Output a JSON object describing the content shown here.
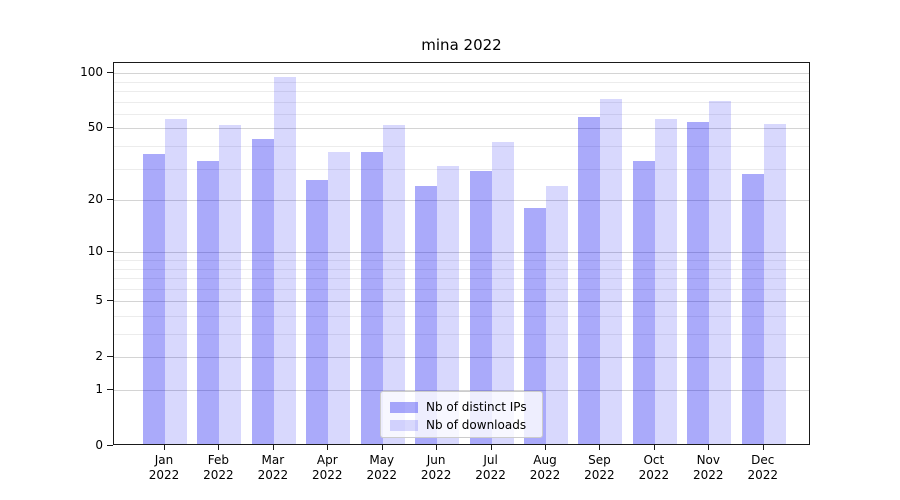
{
  "title": "mina 2022",
  "legend": {
    "items": [
      {
        "label": "Nb of distinct IPs",
        "color_key": "distinct_ips"
      },
      {
        "label": "Nb of downloads",
        "color_key": "downloads"
      }
    ],
    "position": "lower center"
  },
  "colors": {
    "distinct_ips": "rgba(5,5,240,0.34)",
    "downloads": "rgba(5,5,240,0.155)",
    "distinct_ips_hex": "#aaaafa",
    "downloads_hex": "#d8d8fc",
    "grid_major": "#d4d4d4",
    "grid_minor": "#ececec",
    "spine": "#1a1a1a"
  },
  "y_axis": {
    "scale": "log10(1+x)",
    "tick_labels": [
      "0",
      "1",
      "2",
      "5",
      "10",
      "20",
      "50",
      "100"
    ],
    "tick_values": [
      0,
      1,
      2,
      5,
      10,
      20,
      50,
      100
    ],
    "minor_tick_values": [
      3,
      4,
      6,
      7,
      8,
      9,
      30,
      40,
      60,
      70,
      80,
      90
    ]
  },
  "x_axis": {
    "months": [
      {
        "label": "Jan",
        "year": "2022"
      },
      {
        "label": "Feb",
        "year": "2022"
      },
      {
        "label": "Mar",
        "year": "2022"
      },
      {
        "label": "Apr",
        "year": "2022"
      },
      {
        "label": "May",
        "year": "2022"
      },
      {
        "label": "Jun",
        "year": "2022"
      },
      {
        "label": "Jul",
        "year": "2022"
      },
      {
        "label": "Aug",
        "year": "2022"
      },
      {
        "label": "Sep",
        "year": "2022"
      },
      {
        "label": "Oct",
        "year": "2022"
      },
      {
        "label": "Nov",
        "year": "2022"
      },
      {
        "label": "Dec",
        "year": "2022"
      }
    ]
  },
  "chart_data": {
    "type": "bar",
    "title": "mina 2022",
    "categories": [
      "Jan 2022",
      "Feb 2022",
      "Mar 2022",
      "Apr 2022",
      "May 2022",
      "Jun 2022",
      "Jul 2022",
      "Aug 2022",
      "Sep 2022",
      "Oct 2022",
      "Nov 2022",
      "Dec 2022"
    ],
    "series": [
      {
        "name": "Nb of distinct IPs",
        "values": [
          36,
          33,
          44,
          26,
          37,
          24,
          29,
          18,
          58,
          33,
          54,
          28
        ]
      },
      {
        "name": "Nb of downloads",
        "values": [
          56,
          52,
          95,
          37,
          52,
          31,
          42,
          24,
          72,
          56,
          71,
          53
        ]
      }
    ],
    "xlabel": "",
    "ylabel": "",
    "yscale": "log1p",
    "yticks": [
      0,
      1,
      2,
      5,
      10,
      20,
      50,
      100
    ],
    "ylim_top_approx": 112,
    "grid": "horizontal",
    "legend_position": "lower center inside axes"
  }
}
